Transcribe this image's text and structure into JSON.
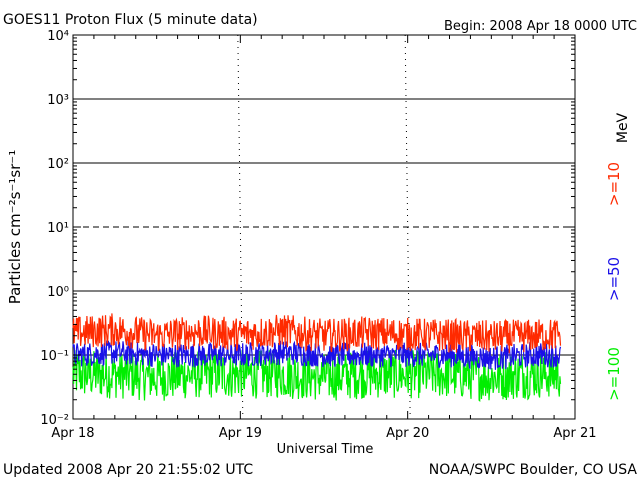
{
  "header": {
    "title": "GOES11 Proton Flux (5 minute data)",
    "begin": "Begin: 2008 Apr 18 0000 UTC"
  },
  "footer": {
    "updated": "Updated 2008 Apr 20 21:55:02 UTC",
    "credit": "NOAA/SWPC Boulder, CO USA"
  },
  "legend": {
    "unit": "MeV",
    "placement": "right side, vertical"
  },
  "chart_data": {
    "type": "line",
    "xlabel": "Universal Time",
    "ylabel": "Particles cm⁻²s⁻¹sr⁻¹",
    "y_scale": "log",
    "ylim": [
      0.01,
      10000
    ],
    "y_ticks": [
      {
        "value": 0.01,
        "label": "10⁻²"
      },
      {
        "value": 0.1,
        "label": "10⁻¹"
      },
      {
        "value": 1,
        "label": "10⁰"
      },
      {
        "value": 10,
        "label": "10¹"
      },
      {
        "value": 100,
        "label": "10²"
      },
      {
        "value": 1000,
        "label": "10³"
      },
      {
        "value": 10000,
        "label": "10⁴"
      }
    ],
    "x_ticks": [
      "Apr 18",
      "Apr 19",
      "Apr 20",
      "Apr 21"
    ],
    "x": [
      "2008-04-18T00:00",
      "2008-04-18T06:00",
      "2008-04-18T12:00",
      "2008-04-18T18:00",
      "2008-04-19T00:00",
      "2008-04-19T06:00",
      "2008-04-19T12:00",
      "2008-04-19T18:00",
      "2008-04-20T00:00",
      "2008-04-20T06:00",
      "2008-04-20T12:00",
      "2008-04-20T18:00",
      "2008-04-20T21:55"
    ],
    "threshold_lines": [
      {
        "value": 10,
        "style": "dashed"
      }
    ],
    "series": [
      {
        "name": ">=10",
        "color": "#ff2a00",
        "values": [
          0.22,
          0.25,
          0.2,
          0.23,
          0.21,
          0.24,
          0.2,
          0.22,
          0.21,
          0.2,
          0.19,
          0.2,
          0.21
        ]
      },
      {
        "name": ">=50",
        "color": "#1a10e8",
        "values": [
          0.1,
          0.11,
          0.1,
          0.1,
          0.1,
          0.11,
          0.1,
          0.1,
          0.1,
          0.1,
          0.09,
          0.1,
          0.1
        ]
      },
      {
        "name": ">=100",
        "color": "#00ee00",
        "values": [
          0.05,
          0.05,
          0.045,
          0.05,
          0.05,
          0.05,
          0.045,
          0.05,
          0.05,
          0.05,
          0.045,
          0.05,
          0.05
        ]
      }
    ]
  }
}
